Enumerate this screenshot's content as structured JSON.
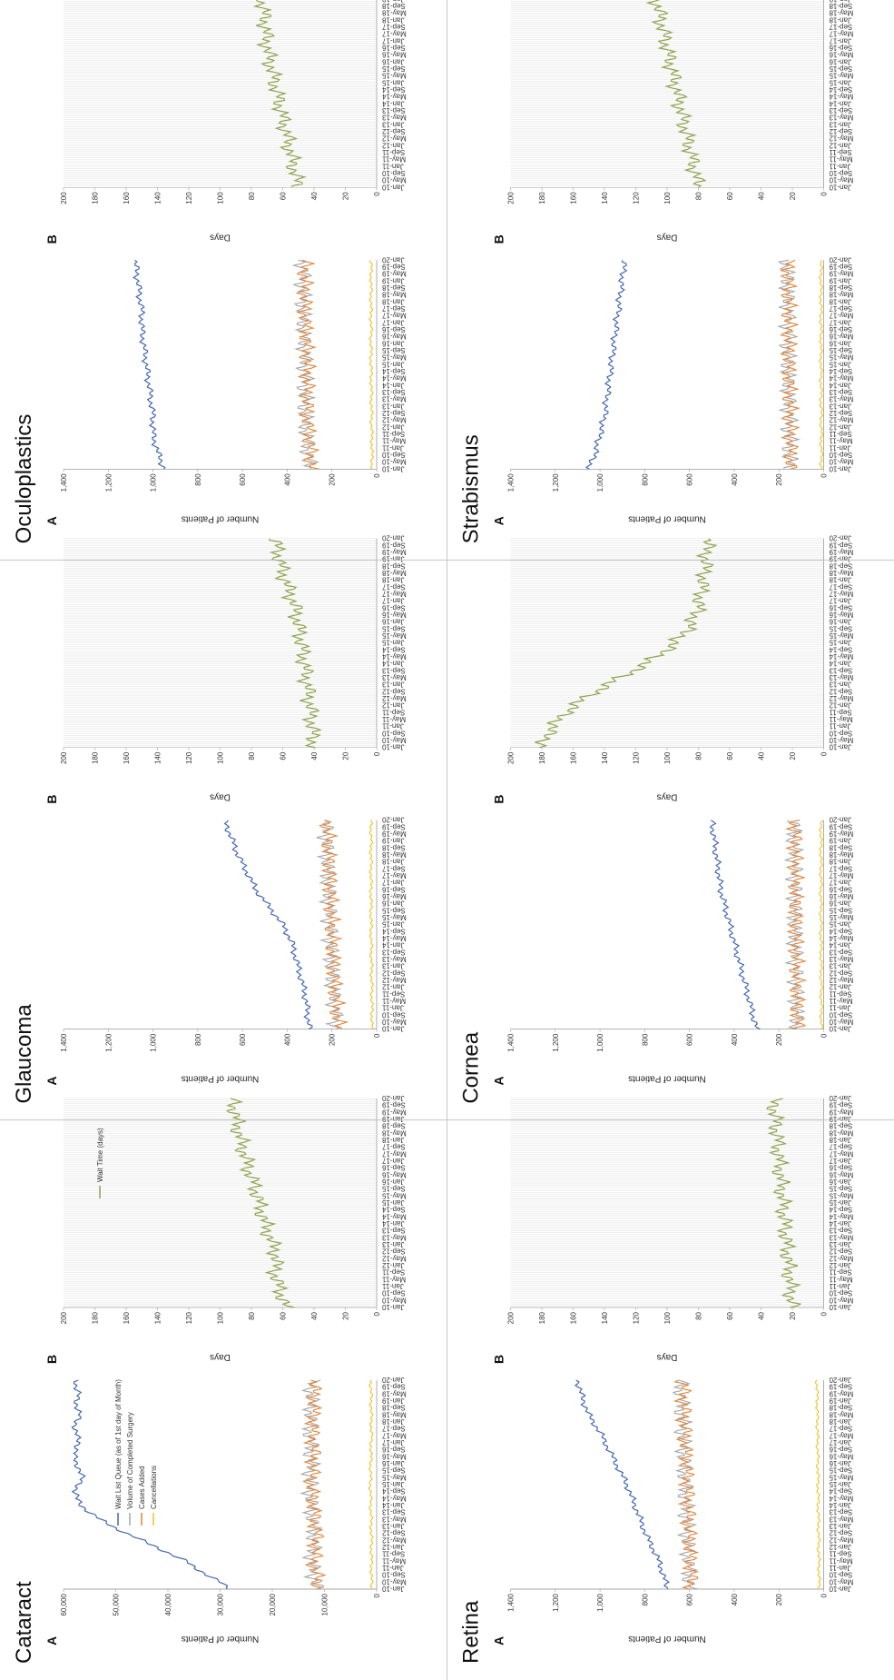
{
  "date_labels": [
    "Jan-10",
    "May-10",
    "Sep-10",
    "Jan-11",
    "May-11",
    "Sep-11",
    "Jan-12",
    "May-12",
    "Sep-12",
    "Jan-13",
    "May-13",
    "Sep-13",
    "Jan-14",
    "May-14",
    "Sep-14",
    "Jan-15",
    "May-15",
    "Sep-15",
    "Jan-16",
    "May-16",
    "Sep-16",
    "Jan-17",
    "May-17",
    "Sep-17",
    "Jan-18",
    "May-18",
    "Sep-18",
    "Jan-19",
    "May-19",
    "Sep-19",
    "Jan-20"
  ],
  "colors": {
    "wait_list": "#4467b5",
    "completed": "#a5a5a5",
    "added": "#e0833a",
    "cancellations": "#f0c020",
    "wait_time": "#8fa34d"
  },
  "legend_a": [
    "Wait List Queue (as of 1st day of Month)",
    "Volume of Completed Surgery",
    "Cases Added",
    "Cancellations"
  ],
  "legend_b": [
    "Wait Time (days)"
  ],
  "chart_data": [
    {
      "name": "cataract",
      "title": "Cataract",
      "type": "line",
      "panel_a": {
        "letter": "A",
        "ylabel": "Number of Patients",
        "ylim": [
          0,
          60000
        ],
        "yticks": [
          "0",
          "10,000",
          "20,000",
          "30,000",
          "40,000",
          "50,000",
          "60,000"
        ],
        "wait_list": [
          [
            0,
            28000
          ],
          [
            4,
            30000
          ],
          [
            8,
            32500
          ],
          [
            12,
            34500
          ],
          [
            16,
            36500
          ],
          [
            20,
            39500
          ],
          [
            24,
            42000
          ],
          [
            28,
            45000
          ],
          [
            32,
            48000
          ],
          [
            36,
            50500
          ],
          [
            40,
            53000
          ],
          [
            44,
            55000
          ],
          [
            48,
            56500
          ],
          [
            52,
            57500
          ],
          [
            56,
            57800
          ],
          [
            60,
            57000
          ],
          [
            64,
            56500
          ],
          [
            68,
            56800
          ],
          [
            72,
            57500
          ],
          [
            76,
            58000
          ],
          [
            80,
            57500
          ],
          [
            84,
            57000
          ],
          [
            88,
            57500
          ],
          [
            92,
            57800
          ],
          [
            96,
            57500
          ],
          [
            100,
            57000
          ],
          [
            104,
            57300
          ],
          [
            108,
            57500
          ],
          [
            112,
            57200
          ],
          [
            116,
            57600
          ],
          [
            120,
            57400
          ]
        ],
        "completed": [
          [
            0,
            11500
          ],
          [
            15,
            12500
          ],
          [
            30,
            12000
          ],
          [
            45,
            12500
          ],
          [
            60,
            12800
          ],
          [
            75,
            12500
          ],
          [
            90,
            12800
          ],
          [
            105,
            12500
          ],
          [
            120,
            12500
          ]
        ],
        "added": [
          [
            0,
            11000
          ],
          [
            15,
            12000
          ],
          [
            30,
            11500
          ],
          [
            45,
            12000
          ],
          [
            60,
            12500
          ],
          [
            75,
            12000
          ],
          [
            90,
            12300
          ],
          [
            105,
            12000
          ],
          [
            120,
            12000
          ]
        ],
        "cancellations": [
          [
            0,
            1000
          ],
          [
            30,
            1000
          ],
          [
            60,
            1200
          ],
          [
            90,
            1000
          ],
          [
            120,
            1100
          ]
        ]
      },
      "panel_b": {
        "letter": "B",
        "ylabel": "Days",
        "ylim": [
          0,
          200
        ],
        "yticks": [
          "0",
          "20",
          "40",
          "60",
          "80",
          "100",
          "120",
          "140",
          "160",
          "180",
          "200"
        ],
        "wait_time": [
          [
            0,
            58
          ],
          [
            10,
            62
          ],
          [
            20,
            65
          ],
          [
            30,
            64
          ],
          [
            40,
            68
          ],
          [
            50,
            72
          ],
          [
            60,
            75
          ],
          [
            70,
            78
          ],
          [
            80,
            82
          ],
          [
            90,
            85
          ],
          [
            100,
            88
          ],
          [
            110,
            90
          ],
          [
            120,
            92
          ]
        ]
      }
    },
    {
      "name": "glaucoma",
      "title": "Glaucoma",
      "type": "line",
      "panel_a": {
        "letter": "A",
        "ylabel": "Number of Patients",
        "ylim": [
          0,
          1400
        ],
        "yticks": [
          "0",
          "200",
          "400",
          "600",
          "800",
          "1,000",
          "1,200",
          "1,400"
        ],
        "wait_list": [
          [
            0,
            300
          ],
          [
            10,
            310
          ],
          [
            20,
            320
          ],
          [
            30,
            340
          ],
          [
            40,
            360
          ],
          [
            50,
            380
          ],
          [
            60,
            420
          ],
          [
            70,
            480
          ],
          [
            80,
            540
          ],
          [
            90,
            580
          ],
          [
            100,
            620
          ],
          [
            110,
            650
          ],
          [
            120,
            680
          ]
        ],
        "completed": [
          [
            0,
            180
          ],
          [
            30,
            200
          ],
          [
            60,
            210
          ],
          [
            90,
            220
          ],
          [
            120,
            230
          ]
        ],
        "added": [
          [
            0,
            170
          ],
          [
            30,
            190
          ],
          [
            60,
            200
          ],
          [
            90,
            210
          ],
          [
            120,
            220
          ]
        ],
        "cancellations": [
          [
            0,
            20
          ],
          [
            60,
            25
          ],
          [
            120,
            25
          ]
        ]
      },
      "panel_b": {
        "letter": "B",
        "ylabel": "Days",
        "ylim": [
          0,
          200
        ],
        "yticks": [
          "0",
          "20",
          "40",
          "60",
          "80",
          "100",
          "120",
          "140",
          "160",
          "180",
          "200"
        ],
        "wait_time": [
          [
            0,
            40
          ],
          [
            20,
            42
          ],
          [
            40,
            45
          ],
          [
            60,
            48
          ],
          [
            80,
            52
          ],
          [
            100,
            60
          ],
          [
            120,
            65
          ]
        ]
      }
    },
    {
      "name": "oculoplastics",
      "title": "Oculoplastics",
      "type": "line",
      "panel_a": {
        "letter": "A",
        "ylabel": "Number of Patients",
        "ylim": [
          0,
          1400
        ],
        "yticks": [
          "0",
          "200",
          "400",
          "600",
          "800",
          "1,000",
          "1,200",
          "1,400"
        ],
        "wait_list": [
          [
            0,
            950
          ],
          [
            10,
            980
          ],
          [
            20,
            1000
          ],
          [
            30,
            1000
          ],
          [
            40,
            1010
          ],
          [
            50,
            1020
          ],
          [
            60,
            1030
          ],
          [
            70,
            1040
          ],
          [
            80,
            1050
          ],
          [
            90,
            1050
          ],
          [
            100,
            1060
          ],
          [
            110,
            1070
          ],
          [
            120,
            1080
          ]
        ],
        "completed": [
          [
            0,
            300
          ],
          [
            30,
            320
          ],
          [
            60,
            320
          ],
          [
            90,
            330
          ],
          [
            120,
            330
          ]
        ],
        "added": [
          [
            0,
            290
          ],
          [
            30,
            310
          ],
          [
            60,
            310
          ],
          [
            90,
            320
          ],
          [
            120,
            320
          ]
        ],
        "cancellations": [
          [
            0,
            20
          ],
          [
            60,
            25
          ],
          [
            120,
            25
          ]
        ]
      },
      "panel_b": {
        "letter": "B",
        "ylabel": "Days",
        "ylim": [
          0,
          200
        ],
        "yticks": [
          "0",
          "20",
          "40",
          "60",
          "80",
          "100",
          "120",
          "140",
          "160",
          "180",
          "200"
        ],
        "wait_time": [
          [
            0,
            50
          ],
          [
            20,
            55
          ],
          [
            40,
            60
          ],
          [
            60,
            65
          ],
          [
            80,
            70
          ],
          [
            100,
            72
          ],
          [
            120,
            75
          ]
        ]
      }
    },
    {
      "name": "retina",
      "title": "Retina",
      "type": "line",
      "panel_a": {
        "letter": "A",
        "ylabel": "Number of Patients",
        "ylim": [
          0,
          1400
        ],
        "yticks": [
          "0",
          "200",
          "400",
          "600",
          "800",
          "1,000",
          "1,200",
          "1,400"
        ],
        "wait_list": [
          [
            0,
            700
          ],
          [
            10,
            720
          ],
          [
            20,
            750
          ],
          [
            30,
            790
          ],
          [
            40,
            820
          ],
          [
            50,
            850
          ],
          [
            60,
            880
          ],
          [
            70,
            920
          ],
          [
            80,
            960
          ],
          [
            90,
            1000
          ],
          [
            100,
            1050
          ],
          [
            110,
            1080
          ],
          [
            120,
            1100
          ]
        ],
        "completed": [
          [
            0,
            600
          ],
          [
            30,
            610
          ],
          [
            60,
            620
          ],
          [
            90,
            630
          ],
          [
            120,
            640
          ]
        ],
        "added": [
          [
            0,
            590
          ],
          [
            30,
            600
          ],
          [
            60,
            610
          ],
          [
            90,
            620
          ],
          [
            120,
            630
          ]
        ],
        "cancellations": [
          [
            0,
            20
          ],
          [
            60,
            25
          ],
          [
            120,
            30
          ]
        ]
      },
      "panel_b": {
        "letter": "B",
        "ylabel": "Days",
        "ylim": [
          0,
          200
        ],
        "yticks": [
          "0",
          "20",
          "40",
          "60",
          "80",
          "100",
          "120",
          "140",
          "160",
          "180",
          "200"
        ],
        "wait_time": [
          [
            0,
            20
          ],
          [
            20,
            22
          ],
          [
            40,
            24
          ],
          [
            60,
            26
          ],
          [
            80,
            28
          ],
          [
            100,
            30
          ],
          [
            120,
            32
          ]
        ]
      }
    },
    {
      "name": "cornea",
      "title": "Cornea",
      "type": "line",
      "panel_a": {
        "letter": "A",
        "ylabel": "Number of Patients",
        "ylim": [
          0,
          1400
        ],
        "yticks": [
          "0",
          "200",
          "400",
          "600",
          "800",
          "1,000",
          "1,200",
          "1,400"
        ],
        "wait_list": [
          [
            0,
            300
          ],
          [
            10,
            320
          ],
          [
            20,
            340
          ],
          [
            30,
            360
          ],
          [
            40,
            380
          ],
          [
            50,
            400
          ],
          [
            60,
            420
          ],
          [
            70,
            440
          ],
          [
            80,
            460
          ],
          [
            90,
            470
          ],
          [
            100,
            480
          ],
          [
            110,
            490
          ],
          [
            120,
            500
          ]
        ],
        "completed": [
          [
            0,
            120
          ],
          [
            30,
            125
          ],
          [
            60,
            130
          ],
          [
            90,
            130
          ],
          [
            120,
            135
          ]
        ],
        "added": [
          [
            0,
            115
          ],
          [
            30,
            120
          ],
          [
            60,
            125
          ],
          [
            90,
            125
          ],
          [
            120,
            130
          ]
        ],
        "cancellations": [
          [
            0,
            10
          ],
          [
            60,
            12
          ],
          [
            120,
            12
          ]
        ]
      },
      "panel_b": {
        "letter": "B",
        "ylabel": "Days",
        "ylim": [
          0,
          200
        ],
        "yticks": [
          "0",
          "20",
          "40",
          "60",
          "80",
          "100",
          "120",
          "140",
          "160",
          "180",
          "200"
        ],
        "wait_time": [
          [
            0,
            180
          ],
          [
            10,
            175
          ],
          [
            20,
            165
          ],
          [
            30,
            150
          ],
          [
            40,
            130
          ],
          [
            50,
            110
          ],
          [
            60,
            95
          ],
          [
            70,
            85
          ],
          [
            80,
            80
          ],
          [
            90,
            78
          ],
          [
            100,
            76
          ],
          [
            110,
            75
          ],
          [
            120,
            74
          ]
        ]
      }
    },
    {
      "name": "strabismus",
      "title": "Strabismus",
      "type": "line",
      "panel_a": {
        "letter": "A",
        "ylabel": "Number of Patients",
        "ylim": [
          0,
          1400
        ],
        "yticks": [
          "0",
          "200",
          "400",
          "600",
          "800",
          "1,000",
          "1,200",
          "1,400"
        ],
        "wait_list": [
          [
            0,
            1050
          ],
          [
            10,
            1020
          ],
          [
            20,
            1000
          ],
          [
            30,
            980
          ],
          [
            40,
            970
          ],
          [
            50,
            960
          ],
          [
            60,
            950
          ],
          [
            70,
            940
          ],
          [
            80,
            930
          ],
          [
            90,
            920
          ],
          [
            100,
            910
          ],
          [
            110,
            900
          ],
          [
            120,
            890
          ]
        ],
        "completed": [
          [
            0,
            150
          ],
          [
            30,
            155
          ],
          [
            60,
            160
          ],
          [
            90,
            160
          ],
          [
            120,
            165
          ]
        ],
        "added": [
          [
            0,
            145
          ],
          [
            30,
            150
          ],
          [
            60,
            155
          ],
          [
            90,
            155
          ],
          [
            120,
            160
          ]
        ],
        "cancellations": [
          [
            0,
            10
          ],
          [
            60,
            12
          ],
          [
            120,
            12
          ]
        ]
      },
      "panel_b": {
        "letter": "B",
        "ylabel": "Days",
        "ylim": [
          0,
          200
        ],
        "yticks": [
          "0",
          "20",
          "40",
          "60",
          "80",
          "100",
          "120",
          "140",
          "160",
          "180",
          "200"
        ],
        "wait_time": [
          [
            0,
            80
          ],
          [
            20,
            85
          ],
          [
            40,
            90
          ],
          [
            60,
            95
          ],
          [
            80,
            100
          ],
          [
            100,
            105
          ],
          [
            120,
            110
          ]
        ]
      }
    }
  ]
}
